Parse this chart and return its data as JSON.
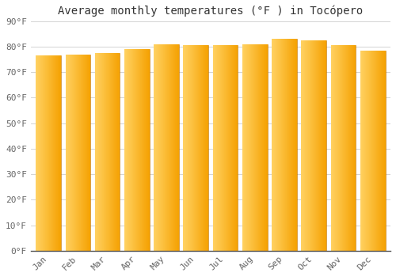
{
  "title": "Average monthly temperatures (°F ) in Tocópero",
  "months": [
    "Jan",
    "Feb",
    "Mar",
    "Apr",
    "May",
    "Jun",
    "Jul",
    "Aug",
    "Sep",
    "Oct",
    "Nov",
    "Dec"
  ],
  "values": [
    76.5,
    77.0,
    77.5,
    79.0,
    81.0,
    80.5,
    80.5,
    81.0,
    83.0,
    82.5,
    80.5,
    78.5
  ],
  "bar_color_left": "#FFD060",
  "bar_color_right": "#F5A000",
  "background_color": "#FFFFFF",
  "grid_color": "#CCCCCC",
  "ylim": [
    0,
    90
  ],
  "yticks": [
    0,
    10,
    20,
    30,
    40,
    50,
    60,
    70,
    80,
    90
  ],
  "ytick_labels": [
    "0°F",
    "10°F",
    "20°F",
    "30°F",
    "40°F",
    "50°F",
    "60°F",
    "70°F",
    "80°F",
    "90°F"
  ],
  "title_fontsize": 10,
  "tick_fontsize": 8,
  "bar_width": 0.85
}
